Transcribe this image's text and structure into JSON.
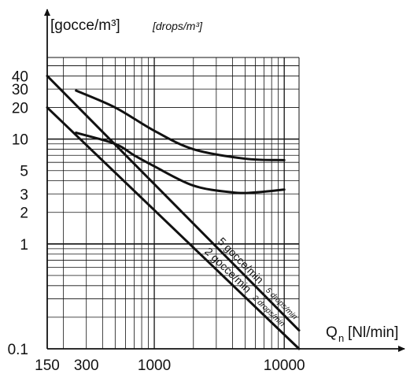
{
  "chart_data": {
    "type": "line",
    "xscale": "log",
    "yscale": "log",
    "xlim": [
      150,
      13000
    ],
    "ylim": [
      0.1,
      60
    ],
    "grid": true,
    "title": "",
    "ylabel": "[gocce/m³]",
    "ylabel_en": "[drops/m³]",
    "xlabel_main": "Q",
    "xlabel_sub": "n",
    "xlabel_unit": "[Nl/min]",
    "x_ticks": [
      "150",
      "300",
      "1000",
      "10000"
    ],
    "y_ticks": [
      "0.1",
      "1",
      "2",
      "3",
      "5",
      "10",
      "20",
      "30",
      "40"
    ],
    "series": [
      {
        "name": "5 gocce/min",
        "name_en": "5 drops/min",
        "x": [
          150,
          13000
        ],
        "y": [
          40,
          0.15
        ]
      },
      {
        "name": "2 gocce/min",
        "name_en": "2 drops/min",
        "x": [
          150,
          13000
        ],
        "y": [
          20,
          0.1
        ]
      },
      {
        "name": "",
        "x": [
          250,
          500,
          1000,
          2000,
          5000,
          10000
        ],
        "y": [
          29,
          20,
          12,
          8,
          6.5,
          6.3
        ]
      },
      {
        "name": "",
        "x": [
          250,
          500,
          700,
          1000,
          2000,
          4000,
          6000,
          10000
        ],
        "y": [
          11.5,
          9,
          7,
          5.5,
          3.6,
          3.1,
          3.1,
          3.3
        ]
      }
    ]
  }
}
